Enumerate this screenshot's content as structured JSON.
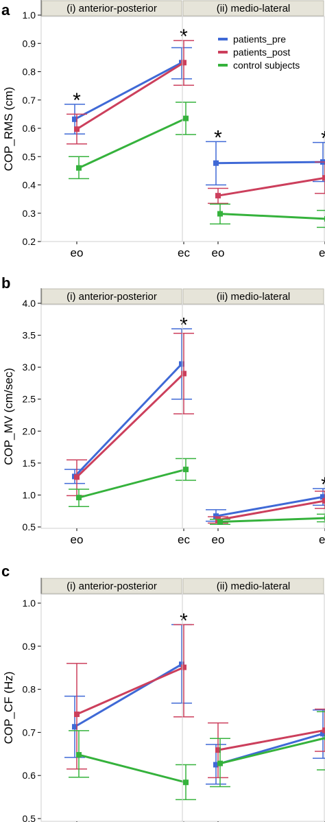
{
  "legend": {
    "entries": [
      {
        "key": "pre",
        "label": "patients_pre"
      },
      {
        "key": "post",
        "label": "patients_post"
      },
      {
        "key": "ctrl",
        "label": "control subjects"
      }
    ]
  },
  "colors": {
    "pre": "#3f69d6",
    "post": "#cc3f5c",
    "ctrl": "#35b23c"
  },
  "chart_data": [
    {
      "type": "line",
      "panel": "a",
      "ylabel": "COP_RMS (cm)",
      "ylim": [
        0.2,
        1.0
      ],
      "yticks": [
        "0.2",
        "0.3",
        "0.4",
        "0.5",
        "0.6",
        "0.7",
        "0.8",
        "0.9",
        "1.0"
      ],
      "facets": [
        {
          "title": "(i) anterior-posterior",
          "categories": [
            "eo",
            "ec"
          ],
          "asterisks": [
            "*",
            "*"
          ],
          "series": [
            {
              "key": "pre",
              "values": [
                0.632,
                0.832
              ],
              "err_low": [
                0.58,
                0.775
              ],
              "err_high": [
                0.685,
                0.885
              ]
            },
            {
              "key": "post",
              "values": [
                0.597,
                0.832
              ],
              "err_low": [
                0.545,
                0.752
              ],
              "err_high": [
                0.65,
                0.91
              ]
            },
            {
              "key": "ctrl",
              "values": [
                0.46,
                0.635
              ],
              "err_low": [
                0.422,
                0.578
              ],
              "err_high": [
                0.5,
                0.692
              ]
            }
          ]
        },
        {
          "title": "(ii) medio-lateral",
          "categories": [
            "eo",
            "ec"
          ],
          "asterisks": [
            "*",
            "*"
          ],
          "series": [
            {
              "key": "pre",
              "values": [
                0.477,
                0.481
              ],
              "err_low": [
                0.4,
                0.412
              ],
              "err_high": [
                0.553,
                0.55
              ]
            },
            {
              "key": "post",
              "values": [
                0.362,
                0.425
              ],
              "err_low": [
                0.335,
                0.37
              ],
              "err_high": [
                0.388,
                0.481
              ]
            },
            {
              "key": "ctrl",
              "values": [
                0.298,
                0.28
              ],
              "err_low": [
                0.262,
                0.25
              ],
              "err_high": [
                0.332,
                0.31
              ]
            }
          ]
        }
      ]
    },
    {
      "type": "line",
      "panel": "b",
      "ylabel": "COP_MV (cm/sec)",
      "ylim": [
        0.5,
        4.0
      ],
      "yticks": [
        "0.5",
        "1.0",
        "1.5",
        "2.0",
        "2.5",
        "3.0",
        "3.5",
        "4.0"
      ],
      "facets": [
        {
          "title": "(i) anterior-posterior",
          "categories": [
            "eo",
            "ec"
          ],
          "asterisks": [
            "",
            "*"
          ],
          "series": [
            {
              "key": "pre",
              "values": [
                1.29,
                3.05
              ],
              "err_low": [
                1.18,
                2.5
              ],
              "err_high": [
                1.4,
                3.6
              ]
            },
            {
              "key": "post",
              "values": [
                1.28,
                2.9
              ],
              "err_low": [
                0.99,
                2.27
              ],
              "err_high": [
                1.55,
                3.53
              ]
            },
            {
              "key": "ctrl",
              "values": [
                0.96,
                1.4
              ],
              "err_low": [
                0.82,
                1.23
              ],
              "err_high": [
                1.09,
                1.57
              ]
            }
          ]
        },
        {
          "title": "(ii) medio-lateral",
          "categories": [
            "eo",
            "ec"
          ],
          "asterisks": [
            "",
            "*"
          ],
          "series": [
            {
              "key": "pre",
              "values": [
                0.67,
                0.97
              ],
              "err_low": [
                0.59,
                0.84
              ],
              "err_high": [
                0.77,
                1.1
              ]
            },
            {
              "key": "post",
              "values": [
                0.61,
                0.91
              ],
              "err_low": [
                0.56,
                0.79
              ],
              "err_high": [
                0.66,
                1.06
              ]
            },
            {
              "key": "ctrl",
              "values": [
                0.58,
                0.64
              ],
              "err_low": [
                0.54,
                0.58
              ],
              "err_high": [
                0.62,
                0.7
              ]
            }
          ]
        }
      ]
    },
    {
      "type": "line",
      "panel": "c",
      "ylabel": "COP_CF (Hz)",
      "ylim": [
        0.5,
        1.0
      ],
      "yticks": [
        "0.5",
        "0.6",
        "0.7",
        "0.8",
        "0.9",
        "1.0"
      ],
      "facets": [
        {
          "title": "(i) anterior-posterior",
          "categories": [
            "eo",
            "ec"
          ],
          "asterisks": [
            "",
            "*"
          ],
          "series": [
            {
              "key": "pre",
              "values": [
                0.713,
                0.858
              ],
              "err_low": [
                0.642,
                0.768
              ],
              "err_high": [
                0.784,
                0.95
              ]
            },
            {
              "key": "post",
              "values": [
                0.742,
                0.851
              ],
              "err_low": [
                0.615,
                0.736
              ],
              "err_high": [
                0.86,
                0.95
              ]
            },
            {
              "key": "ctrl",
              "values": [
                0.648,
                0.584
              ],
              "err_low": [
                0.596,
                0.544
              ],
              "err_high": [
                0.704,
                0.625
              ]
            }
          ]
        },
        {
          "title": "(ii) medio-lateral",
          "categories": [
            "eo",
            "ec"
          ],
          "asterisks": [
            "",
            ""
          ],
          "series": [
            {
              "key": "pre",
              "values": [
                0.625,
                0.697
              ],
              "err_low": [
                0.58,
                0.64
              ],
              "err_high": [
                0.672,
                0.752
              ]
            },
            {
              "key": "post",
              "values": [
                0.659,
                0.705
              ],
              "err_low": [
                0.595,
                0.656
              ],
              "err_high": [
                0.722,
                0.754
              ]
            },
            {
              "key": "ctrl",
              "values": [
                0.628,
                0.688
              ],
              "err_low": [
                0.574,
                0.613
              ],
              "err_high": [
                0.686,
                0.748
              ]
            }
          ]
        }
      ]
    }
  ]
}
